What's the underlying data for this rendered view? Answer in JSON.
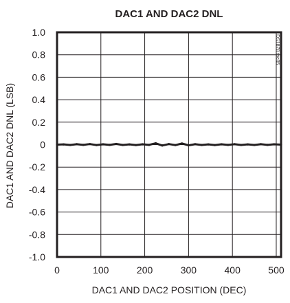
{
  "chart_data": {
    "type": "line",
    "title": "DAC1 AND DAC2 DNL",
    "xlabel": "DAC1 AND DAC2 POSITION (DEC)",
    "ylabel": "DAC1 AND DAC2 DNL (LSB)",
    "xlim": [
      0,
      511
    ],
    "ylim": [
      -1.0,
      1.0
    ],
    "x_ticks": [
      0,
      100,
      200,
      300,
      400,
      500
    ],
    "x_tick_labels": [
      "0",
      "100",
      "200",
      "300",
      "400",
      "500"
    ],
    "y_ticks": [
      1.0,
      0.8,
      0.6,
      0.4,
      0.2,
      0,
      -0.2,
      -0.4,
      -0.6,
      -0.8,
      -1.0
    ],
    "y_tick_labels": [
      "1.0",
      "0.8",
      "0.6",
      "0.4",
      "0.2",
      "0",
      "-0.2",
      "-0.4",
      "-0.6",
      "-0.8",
      "-1.0"
    ],
    "grid": true,
    "series": [
      {
        "color": "#231f20",
        "x": [
          0,
          15,
          30,
          45,
          60,
          75,
          90,
          105,
          120,
          135,
          150,
          165,
          180,
          195,
          210,
          225,
          240,
          255,
          270,
          285,
          300,
          315,
          330,
          345,
          360,
          375,
          390,
          405,
          420,
          435,
          450,
          465,
          480,
          495,
          511
        ],
        "values": [
          0.0,
          0.002,
          -0.003,
          0.004,
          -0.002,
          0.005,
          -0.004,
          0.003,
          -0.002,
          0.006,
          -0.003,
          0.002,
          -0.004,
          0.003,
          -0.002,
          0.012,
          -0.008,
          0.005,
          -0.004,
          0.01,
          -0.006,
          0.004,
          -0.003,
          0.002,
          -0.004,
          0.003,
          -0.002,
          0.004,
          -0.003,
          0.002,
          -0.003,
          0.004,
          -0.002,
          0.003,
          0.0
        ]
      }
    ],
    "watermark": "DS1878 toc05"
  }
}
